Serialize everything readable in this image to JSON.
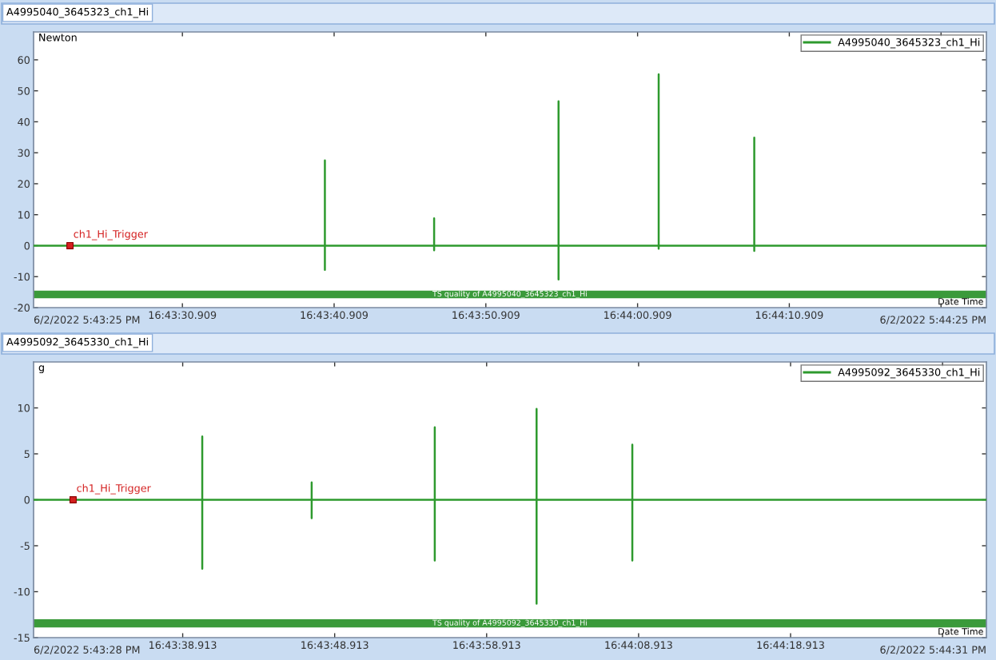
{
  "chart_data": [
    {
      "type": "line",
      "title": "A4995040_3645323_ch1_Hi",
      "ylabel": "Newton",
      "xlabel": "Date Time",
      "legend": "top right",
      "grid": false,
      "xlim": [
        "2022-06-02T16:43:21.1",
        "2022-06-02T16:44:23.9"
      ],
      "xticks": [
        {
          "value": "2022-06-02T16:43:30.909",
          "label": "16:43:30.909"
        },
        {
          "value": "2022-06-02T16:43:40.909",
          "label": "16:43:40.909"
        },
        {
          "value": "2022-06-02T16:43:50.909",
          "label": "16:43:50.909"
        },
        {
          "value": "2022-06-02T16:44:00.909",
          "label": "16:44:00.909"
        },
        {
          "value": "2022-06-02T16:44:10.909",
          "label": "16:44:10.909"
        },
        {
          "value": "2022-06-02T16:44:20.909",
          "label": null
        }
      ],
      "ylim": [
        -20,
        69
      ],
      "yticks": [
        -20,
        -10,
        0,
        10,
        20,
        30,
        40,
        50,
        60
      ],
      "series": [
        {
          "name": "A4995040_3645323_ch1_Hi",
          "color": "#2e9a2e",
          "x": [
            "2022-06-02T16:43:21.1",
            "2022-06-02T16:43:40.3",
            "2022-06-02T16:43:40.3",
            "2022-06-02T16:43:40.3",
            "2022-06-02T16:43:40.3",
            "2022-06-02T16:43:47.5",
            "2022-06-02T16:43:47.5",
            "2022-06-02T16:43:47.5",
            "2022-06-02T16:43:47.5",
            "2022-06-02T16:43:55.7",
            "2022-06-02T16:43:55.7",
            "2022-06-02T16:43:55.7",
            "2022-06-02T16:43:55.7",
            "2022-06-02T16:44:02.3",
            "2022-06-02T16:44:02.3",
            "2022-06-02T16:44:02.3",
            "2022-06-02T16:44:02.3",
            "2022-06-02T16:44:08.6",
            "2022-06-02T16:44:08.6",
            "2022-06-02T16:44:08.6",
            "2022-06-02T16:44:08.6",
            "2022-06-02T16:44:23.9"
          ],
          "values": [
            0,
            0,
            27.5,
            -7.8,
            0,
            0,
            8.8,
            -1.5,
            0,
            0,
            46.6,
            -10.9,
            0,
            0,
            55.3,
            -1,
            0,
            0,
            34.9,
            -1.7,
            0,
            0
          ]
        },
        {
          "name": "ch1_Hi_Trigger",
          "type": "scatter",
          "color": "#d42020",
          "x": [
            "2022-06-02T16:43:23.5"
          ],
          "values": [
            0
          ]
        }
      ],
      "bands": [
        {
          "axis": "y",
          "from": -17,
          "to": -14.5,
          "label": "TS quality of A4995040_3645323_ch1_Hi",
          "color": "#3a9a3a"
        }
      ],
      "annotations": [
        "6/2/2022 5:43:25 PM",
        "6/2/2022 5:44:25 PM"
      ]
    },
    {
      "type": "line",
      "title": "A4995092_3645330_ch1_Hi",
      "ylabel": "g",
      "xlabel": "Date Time",
      "legend": "top right",
      "grid": false,
      "xlim": [
        "2022-06-02T16:43:29.1",
        "2022-06-02T16:44:31.8"
      ],
      "xticks": [
        {
          "value": "2022-06-02T16:43:38.913",
          "label": "16:43:38.913"
        },
        {
          "value": "2022-06-02T16:43:48.913",
          "label": "16:43:48.913"
        },
        {
          "value": "2022-06-02T16:43:58.913",
          "label": "16:43:58.913"
        },
        {
          "value": "2022-06-02T16:44:08.913",
          "label": "16:44:08.913"
        },
        {
          "value": "2022-06-02T16:44:18.913",
          "label": "16:44:18.913"
        },
        {
          "value": "2022-06-02T16:44:28.913",
          "label": null
        }
      ],
      "ylim": [
        -15,
        15
      ],
      "yticks": [
        -15,
        -10,
        -5,
        0,
        5,
        10
      ],
      "series": [
        {
          "name": "A4995092_3645330_ch1_Hi",
          "color": "#2e9a2e",
          "x": [
            "2022-06-02T16:43:29.1",
            "2022-06-02T16:43:40.2",
            "2022-06-02T16:43:40.2",
            "2022-06-02T16:43:40.2",
            "2022-06-02T16:43:40.2",
            "2022-06-02T16:43:47.4",
            "2022-06-02T16:43:47.4",
            "2022-06-02T16:43:47.4",
            "2022-06-02T16:43:47.4",
            "2022-06-02T16:43:55.5",
            "2022-06-02T16:43:55.5",
            "2022-06-02T16:43:55.5",
            "2022-06-02T16:43:55.5",
            "2022-06-02T16:44:02.2",
            "2022-06-02T16:44:02.2",
            "2022-06-02T16:44:02.2",
            "2022-06-02T16:44:02.2",
            "2022-06-02T16:44:08.5",
            "2022-06-02T16:44:08.5",
            "2022-06-02T16:44:08.5",
            "2022-06-02T16:44:08.5",
            "2022-06-02T16:44:31.8"
          ],
          "values": [
            0,
            0,
            6.9,
            -7.5,
            0,
            0,
            1.9,
            -2.0,
            0,
            0,
            7.9,
            -6.6,
            0,
            0,
            9.9,
            -11.3,
            0,
            0,
            6.0,
            -6.6,
            0,
            0
          ]
        },
        {
          "name": "ch1_Hi_Trigger",
          "type": "scatter",
          "color": "#d42020",
          "x": [
            "2022-06-02T16:43:31.7"
          ],
          "values": [
            0
          ]
        }
      ],
      "bands": [
        {
          "axis": "y",
          "from": -13.9,
          "to": -13.0,
          "label": "TS quality of A4995092_3645330_ch1_Hi",
          "color": "#3a9a3a"
        }
      ],
      "annotations": [
        "6/2/2022 5:43:28 PM",
        "6/2/2022 5:44:31 PM"
      ]
    }
  ]
}
